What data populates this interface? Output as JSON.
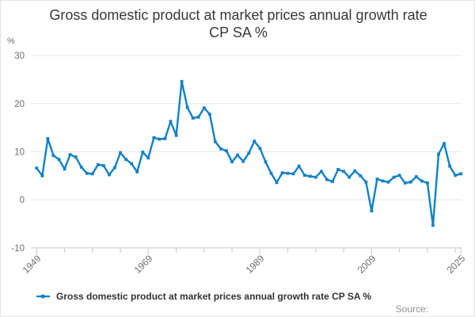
{
  "title": {
    "line1": "Gross domestic product at market prices annual growth rate",
    "line2": "CP SA %"
  },
  "y_axis": {
    "unit": "%",
    "ticks": [
      30,
      20,
      10,
      0,
      -10
    ],
    "min": -10,
    "max": 30
  },
  "x_axis": {
    "tick_labels": [
      "1949",
      "1969",
      "1989",
      "2009",
      "2025"
    ],
    "tick_interval_years": 5
  },
  "legend": {
    "label": "Gross domestic product at market prices annual growth rate CP SA %"
  },
  "source_label": "Source:",
  "colors": {
    "line": "#1181c6",
    "grid": "#e7e7e7",
    "axis": "#c6d3e2",
    "tick_label": "#6e6e6e",
    "title": "#383838",
    "legend_text": "#333333",
    "source": "#8f8f8f"
  },
  "chart_data": {
    "type": "line",
    "title": "Gross domestic product at market prices annual growth rate CP SA %",
    "ylabel": "%",
    "ylim": [
      -10,
      30
    ],
    "xlim": [
      1949,
      2025
    ],
    "grid": "horizontal",
    "legend_position": "bottom-left",
    "marker": "square",
    "years": [
      1949,
      1950,
      1951,
      1952,
      1953,
      1954,
      1955,
      1956,
      1957,
      1958,
      1959,
      1960,
      1961,
      1962,
      1963,
      1964,
      1965,
      1966,
      1967,
      1968,
      1969,
      1970,
      1971,
      1972,
      1973,
      1974,
      1975,
      1976,
      1977,
      1978,
      1979,
      1980,
      1981,
      1982,
      1983,
      1984,
      1985,
      1986,
      1987,
      1988,
      1989,
      1990,
      1991,
      1992,
      1993,
      1994,
      1995,
      1996,
      1997,
      1998,
      1999,
      2000,
      2001,
      2002,
      2003,
      2004,
      2005,
      2006,
      2007,
      2008,
      2009,
      2010,
      2011,
      2012,
      2013,
      2014,
      2015,
      2016,
      2017,
      2018,
      2019,
      2020,
      2021,
      2022,
      2023,
      2024,
      2025
    ],
    "values": [
      6.6,
      5.0,
      12.7,
      9.2,
      8.4,
      6.4,
      9.4,
      8.9,
      6.8,
      5.5,
      5.4,
      7.3,
      7.1,
      5.2,
      6.7,
      9.8,
      8.4,
      7.5,
      5.8,
      9.9,
      8.7,
      12.9,
      12.6,
      12.7,
      16.3,
      13.4,
      24.6,
      19.2,
      17.0,
      17.2,
      19.1,
      17.8,
      12.1,
      10.6,
      10.2,
      7.9,
      9.3,
      8.0,
      9.7,
      12.2,
      10.7,
      7.9,
      5.5,
      3.6,
      5.6,
      5.5,
      5.4,
      7.0,
      5.1,
      4.9,
      4.7,
      5.9,
      4.2,
      3.8,
      6.3,
      5.9,
      4.7,
      6.0,
      5.0,
      3.7,
      -2.3,
      4.3,
      3.9,
      3.7,
      4.7,
      5.1,
      3.5,
      3.7,
      4.8,
      3.9,
      3.5,
      -5.3,
      9.5,
      11.7,
      7.0,
      5.1,
      5.4
    ]
  }
}
